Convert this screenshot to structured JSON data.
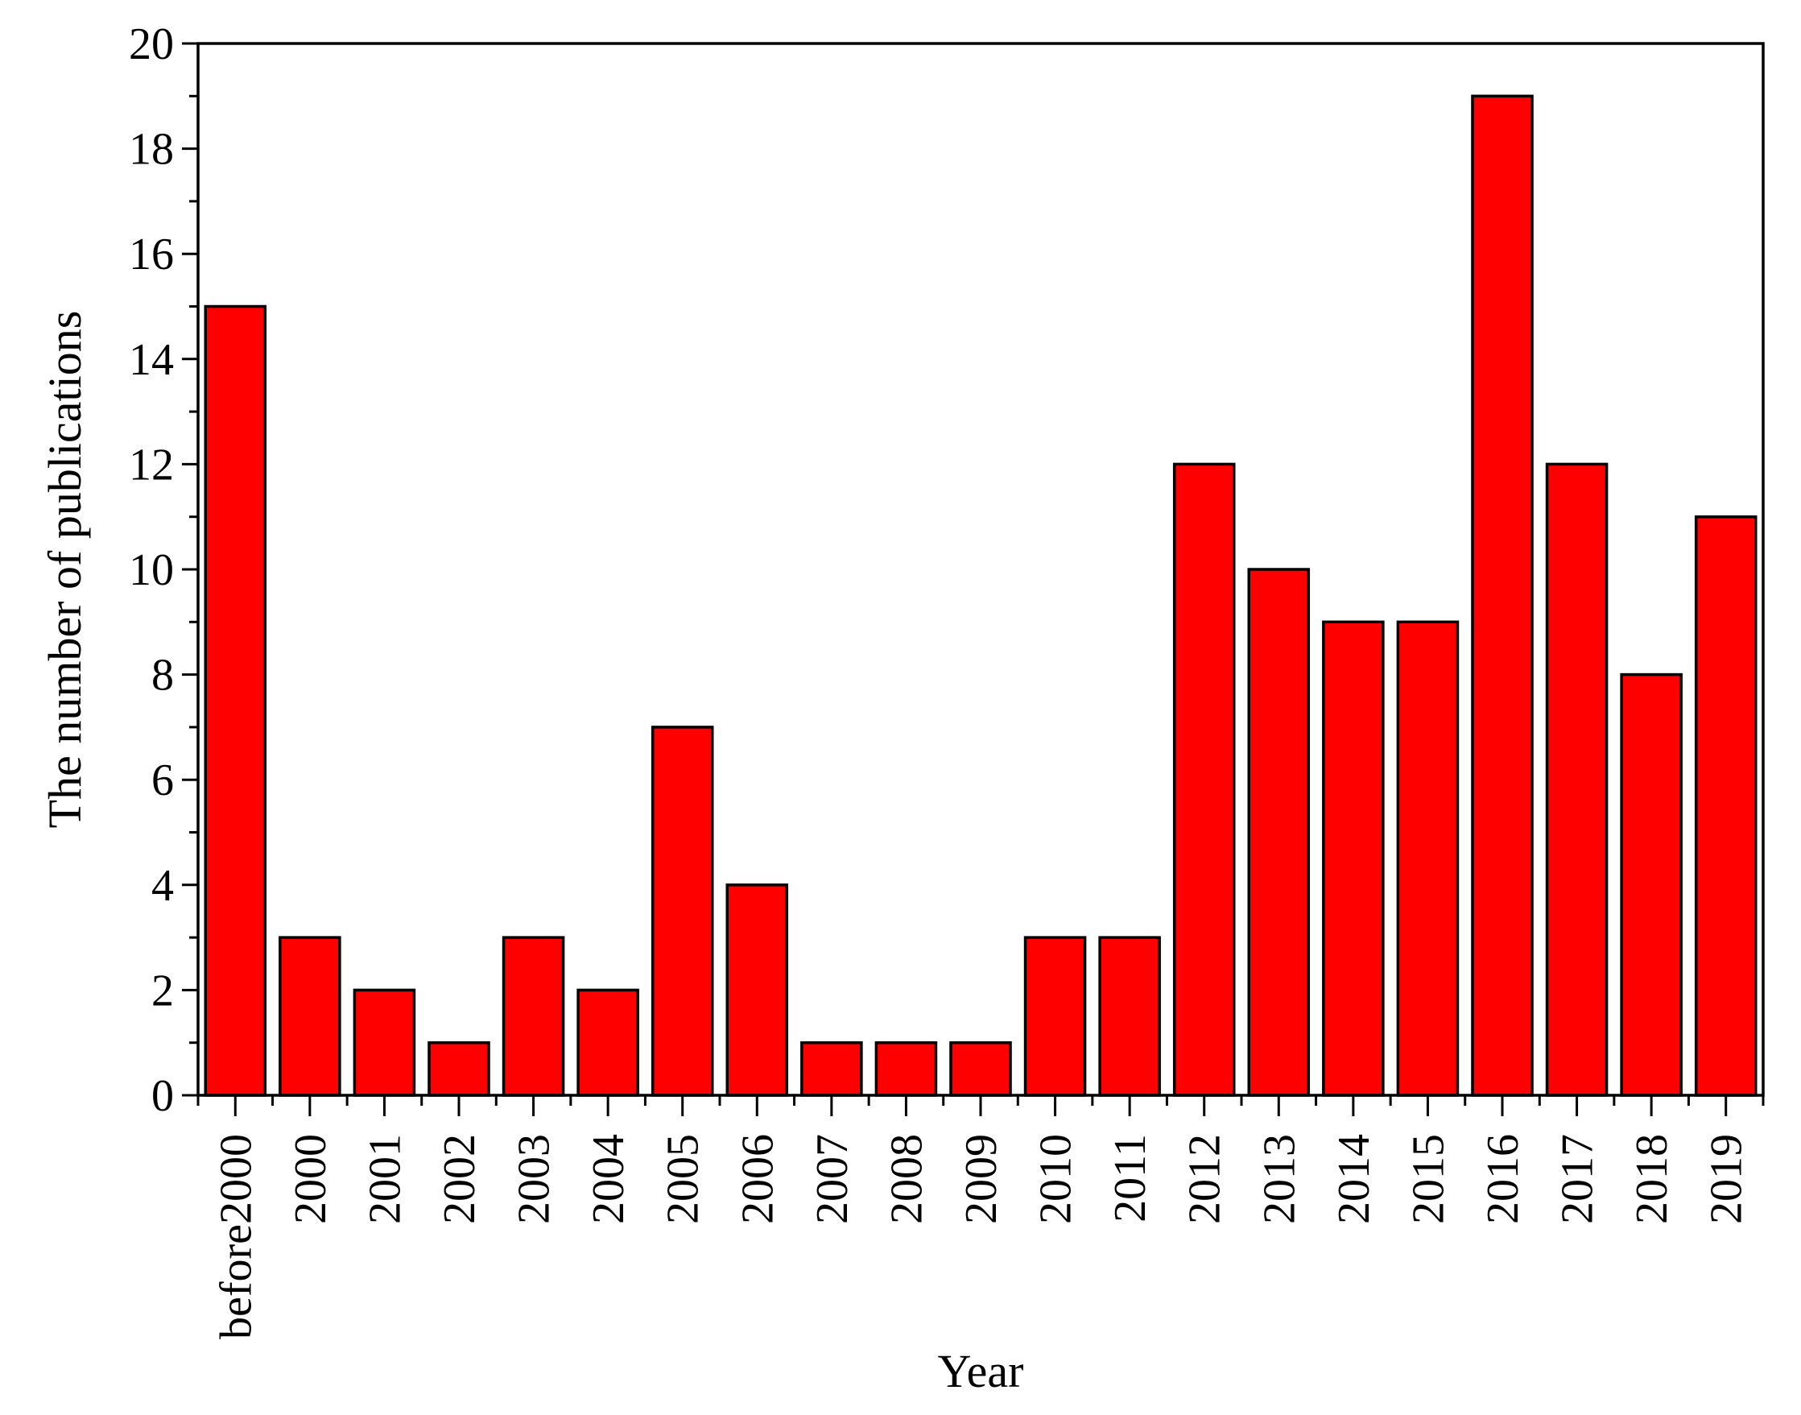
{
  "chart_data": {
    "type": "bar",
    "categories": [
      "before2000",
      "2000",
      "2001",
      "2002",
      "2003",
      "2004",
      "2005",
      "2006",
      "2007",
      "2008",
      "2009",
      "2010",
      "2011",
      "2012",
      "2013",
      "2014",
      "2015",
      "2016",
      "2017",
      "2018",
      "2019"
    ],
    "values": [
      15,
      3,
      2,
      1,
      3,
      2,
      7,
      4,
      1,
      1,
      1,
      3,
      3,
      12,
      10,
      9,
      9,
      19,
      12,
      8,
      11
    ],
    "xlabel": "Year",
    "ylabel": "The number of publications",
    "ylim": [
      0,
      20
    ],
    "yticks": [
      0,
      2,
      4,
      6,
      8,
      10,
      12,
      14,
      16,
      18,
      20
    ],
    "bar_color": "#ff0000",
    "grid": false,
    "legend": "none"
  }
}
